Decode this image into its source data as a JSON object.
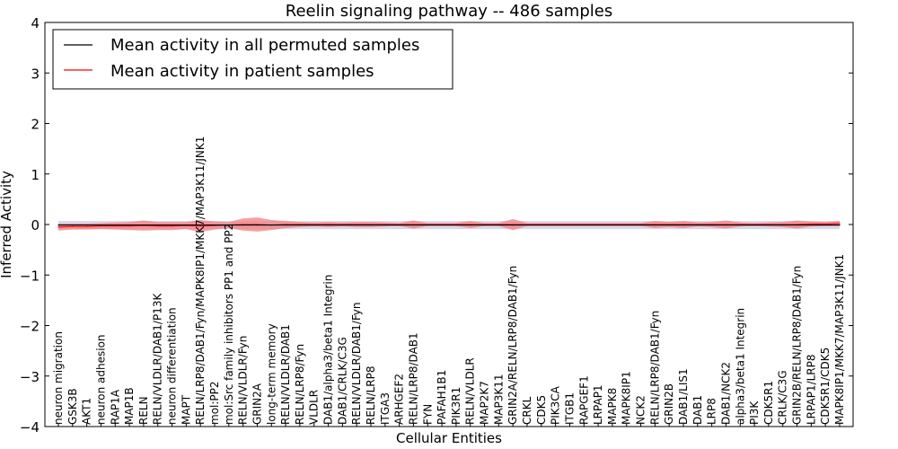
{
  "chart_data": {
    "type": "line",
    "title": "Reelin signaling pathway -- 486 samples",
    "xlabel": "Cellular Entities",
    "ylabel": "Inferred Activity",
    "ylim": [
      -4,
      4
    ],
    "yticks": [
      "−4",
      "−3",
      "−2",
      "−1",
      "0",
      "1",
      "2",
      "3",
      "4"
    ],
    "grid": false,
    "legend_position": "top-left",
    "colors": {
      "permuted": "#000000",
      "patient": "#ff0000",
      "patient_band": "#f08080",
      "permuted_band": "#c8c8e6"
    },
    "categories": [
      "neuron migration",
      "GSK3B",
      "AKT1",
      "neuron adhesion",
      "RAP1A",
      "MAP1B",
      "RELN",
      "RELN/VLDLR/DAB1/P13K",
      "neuron differentiation",
      "MAPT",
      "RELN/LRP8/DAB1/Fyn/MAPK8IP1/MKK7/MAP3K11/JNK1",
      "mol:PP2",
      "mol:Src family inhibitors PP1 and PP2",
      "RELN/VLDLR/Fyn",
      "GRIN2A",
      "long-term memory",
      "RELN/VLDLR/DAB1",
      "RELN/LRP8/Fyn",
      "VLDLR",
      "DAB1/alpha3/beta1 Integrin",
      "DAB1/CRLK/C3G",
      "RELN/VLDLR/DAB1/Fyn",
      "RELN/LRP8",
      "ITGA3",
      "ARHGEF2",
      "RELN/LRP8/DAB1",
      "FYN",
      "PAFAH1B1",
      "PIK3R1",
      "RELN/VLDLR",
      "MAP2K7",
      "MAP3K11",
      "GRIN2A/RELN/LRP8/DAB1/Fyn",
      "CRKL",
      "CDK5",
      "PIK3CA",
      "ITGB1",
      "RAPGEF1",
      "LRPAP1",
      "MAPK8",
      "MAPK8IP1",
      "NCK2",
      "RELN/LRP8/DAB1/Fyn",
      "GRIN2B",
      "DAB1/LIS1",
      "DAB1",
      "LRP8",
      "DAB1/NCK2",
      "alpha3/beta1 Integrin",
      "PI3K",
      "CDK5R1",
      "CRLK/C3G",
      "GRIN2B/RELN/LRP8/DAB1/Fyn",
      "LRPAP1/LRP8",
      "CDK5R1/CDK5",
      "MAPK8IP1/MKK7/MAP3K11/JNK1"
    ],
    "series": [
      {
        "name": "Mean activity in all permuted samples",
        "values": [
          -0.01,
          -0.01,
          -0.01,
          -0.01,
          -0.01,
          -0.01,
          -0.01,
          -0.01,
          -0.01,
          -0.01,
          -0.01,
          -0.01,
          -0.01,
          -0.01,
          -0.01,
          -0.01,
          -0.01,
          -0.01,
          -0.01,
          -0.01,
          -0.01,
          -0.01,
          -0.01,
          -0.01,
          -0.01,
          -0.01,
          -0.01,
          -0.01,
          -0.01,
          -0.01,
          -0.01,
          -0.01,
          -0.01,
          -0.01,
          -0.01,
          -0.01,
          -0.01,
          -0.01,
          -0.01,
          -0.01,
          -0.01,
          -0.01,
          -0.01,
          -0.01,
          -0.01,
          -0.01,
          -0.01,
          -0.01,
          -0.01,
          -0.01,
          -0.01,
          -0.01,
          -0.01,
          -0.01,
          -0.01,
          -0.01
        ],
        "band": [
          0.08,
          0.08,
          0.08,
          0.08,
          0.08,
          0.08,
          0.08,
          0.08,
          0.08,
          0.08,
          0.08,
          0.08,
          0.08,
          0.08,
          0.08,
          0.08,
          0.08,
          0.08,
          0.08,
          0.08,
          0.08,
          0.08,
          0.08,
          0.08,
          0.08,
          0.08,
          0.08,
          0.08,
          0.08,
          0.08,
          0.08,
          0.08,
          0.08,
          0.08,
          0.08,
          0.08,
          0.08,
          0.08,
          0.08,
          0.08,
          0.08,
          0.08,
          0.08,
          0.08,
          0.08,
          0.08,
          0.08,
          0.08,
          0.08,
          0.08,
          0.08,
          0.08,
          0.08,
          0.08,
          0.08,
          0.08
        ]
      },
      {
        "name": "Mean activity in patient samples",
        "values": [
          -0.05,
          -0.04,
          -0.04,
          -0.03,
          -0.03,
          -0.03,
          -0.02,
          -0.03,
          -0.03,
          -0.02,
          -0.03,
          -0.02,
          -0.01,
          0.0,
          0.0,
          -0.01,
          0.0,
          0.0,
          0.0,
          0.0,
          0.0,
          0.0,
          0.0,
          0.0,
          0.0,
          0.0,
          0.0,
          0.0,
          0.0,
          0.0,
          0.0,
          0.0,
          0.0,
          0.0,
          0.0,
          0.0,
          0.0,
          0.0,
          0.0,
          0.0,
          0.0,
          0.0,
          0.0,
          0.0,
          0.0,
          0.0,
          0.0,
          0.0,
          0.0,
          0.0,
          0.0,
          0.0,
          0.0,
          0.01,
          0.01,
          0.02
        ],
        "band": [
          0.07,
          0.06,
          0.06,
          0.06,
          0.07,
          0.08,
          0.1,
          0.08,
          0.08,
          0.07,
          0.12,
          0.08,
          0.06,
          0.12,
          0.14,
          0.1,
          0.07,
          0.05,
          0.04,
          0.05,
          0.04,
          0.05,
          0.05,
          0.04,
          0.03,
          0.08,
          0.03,
          0.03,
          0.03,
          0.07,
          0.03,
          0.03,
          0.11,
          0.03,
          0.03,
          0.03,
          0.03,
          0.03,
          0.03,
          0.03,
          0.03,
          0.03,
          0.07,
          0.05,
          0.07,
          0.04,
          0.05,
          0.08,
          0.04,
          0.03,
          0.04,
          0.05,
          0.08,
          0.05,
          0.04,
          0.05
        ]
      }
    ]
  }
}
